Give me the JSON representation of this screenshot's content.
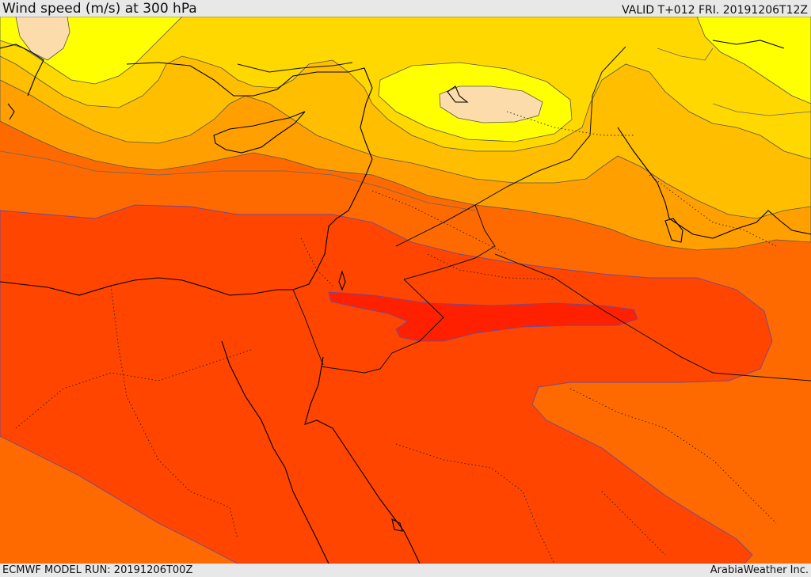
{
  "header": {
    "title": "Wind speed (m/s) at 300 hPa",
    "valid": "VALID T+012 FRI. 20191206T12Z"
  },
  "footer": {
    "run": "ECMWF MODEL RUN: 20191206T00Z",
    "credit": "ArabiaWeather Inc."
  },
  "colors": {
    "band_peach": "#fddcab",
    "band_yellow": "#ffff00",
    "band_gold": "#ffd700",
    "band_amber": "#ffbf00",
    "band_orange_light": "#ffa500",
    "band_orange": "#ff7f00",
    "band_orange_red": "#ff6000",
    "band_red_orange": "#ff4500",
    "band_red": "#ff2000",
    "coastline": "#000000",
    "contour": "#555555"
  }
}
